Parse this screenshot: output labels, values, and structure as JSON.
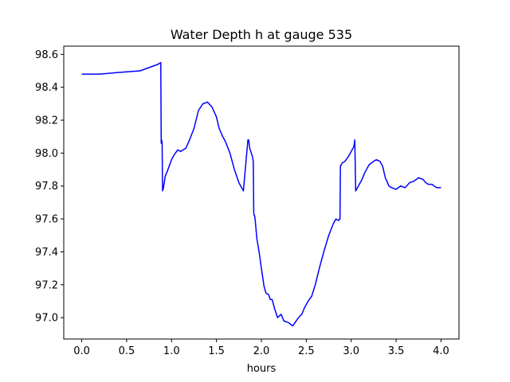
{
  "chart_data": {
    "type": "line",
    "title": "Water Depth h at gauge 535",
    "xlabel": "hours",
    "ylabel": "",
    "xlim": [
      -0.2,
      4.2
    ],
    "ylim": [
      96.87,
      98.65
    ],
    "x_ticks": [
      0.0,
      0.5,
      1.0,
      1.5,
      2.0,
      2.5,
      3.0,
      3.5,
      4.0
    ],
    "x_tick_labels": [
      "0.0",
      "0.5",
      "1.0",
      "1.5",
      "2.0",
      "2.5",
      "3.0",
      "3.5",
      "4.0"
    ],
    "y_ticks": [
      97.0,
      97.2,
      97.4,
      97.6,
      97.8,
      98.0,
      98.2,
      98.4,
      98.6
    ],
    "y_tick_labels": [
      "97.0",
      "97.2",
      "97.4",
      "97.6",
      "97.8",
      "98.0",
      "98.2",
      "98.4",
      "98.6"
    ],
    "grid": false,
    "series": [
      {
        "color": "#0000ff",
        "x": [
          0.0,
          0.2,
          0.4,
          0.65,
          0.75,
          0.85,
          0.88,
          0.885,
          0.89,
          0.895,
          0.9,
          0.91,
          0.93,
          0.96,
          1.0,
          1.03,
          1.07,
          1.1,
          1.13,
          1.16,
          1.2,
          1.25,
          1.3,
          1.35,
          1.4,
          1.45,
          1.5,
          1.53,
          1.57,
          1.6,
          1.65,
          1.7,
          1.75,
          1.8,
          1.85,
          1.86,
          1.865,
          1.87,
          1.9,
          1.91,
          1.915,
          1.92,
          1.925,
          1.93,
          1.95,
          1.98,
          2.0,
          2.03,
          2.05,
          2.08,
          2.1,
          2.12,
          2.15,
          2.18,
          2.22,
          2.25,
          2.3,
          2.35,
          2.4,
          2.43,
          2.45,
          2.48,
          2.52,
          2.56,
          2.6,
          2.65,
          2.7,
          2.75,
          2.8,
          2.83,
          2.86,
          2.87,
          2.875,
          2.88,
          2.9,
          2.93,
          2.97,
          3.0,
          3.02,
          3.03,
          3.035,
          3.04,
          3.05,
          3.08,
          3.12,
          3.15,
          3.2,
          3.25,
          3.28,
          3.32,
          3.35,
          3.38,
          3.42,
          3.45,
          3.5,
          3.55,
          3.6,
          3.65,
          3.7,
          3.75,
          3.8,
          3.83,
          3.86,
          3.9,
          3.95,
          4.0
        ],
        "y": [
          98.48,
          98.48,
          98.49,
          98.5,
          98.52,
          98.54,
          98.55,
          98.06,
          98.08,
          98.06,
          97.77,
          97.79,
          97.86,
          97.9,
          97.96,
          97.99,
          98.02,
          98.01,
          98.02,
          98.03,
          98.08,
          98.15,
          98.26,
          98.3,
          98.31,
          98.28,
          98.22,
          98.15,
          98.1,
          98.07,
          98.0,
          97.9,
          97.82,
          97.77,
          98.08,
          98.08,
          98.05,
          98.03,
          97.98,
          97.95,
          97.64,
          97.62,
          97.62,
          97.6,
          97.48,
          97.38,
          97.3,
          97.19,
          97.15,
          97.14,
          97.11,
          97.11,
          97.05,
          97.0,
          97.02,
          96.98,
          96.97,
          96.95,
          96.99,
          97.01,
          97.02,
          97.06,
          97.1,
          97.13,
          97.2,
          97.31,
          97.41,
          97.5,
          97.57,
          97.6,
          97.59,
          97.6,
          97.6,
          97.92,
          97.94,
          97.95,
          97.98,
          98.01,
          98.03,
          98.04,
          98.06,
          98.08,
          97.77,
          97.8,
          97.84,
          97.88,
          97.93,
          97.95,
          97.96,
          97.95,
          97.92,
          97.85,
          97.8,
          97.79,
          97.78,
          97.8,
          97.79,
          97.82,
          97.83,
          97.85,
          97.84,
          97.82,
          97.81,
          97.81,
          97.79,
          97.79
        ]
      }
    ]
  }
}
